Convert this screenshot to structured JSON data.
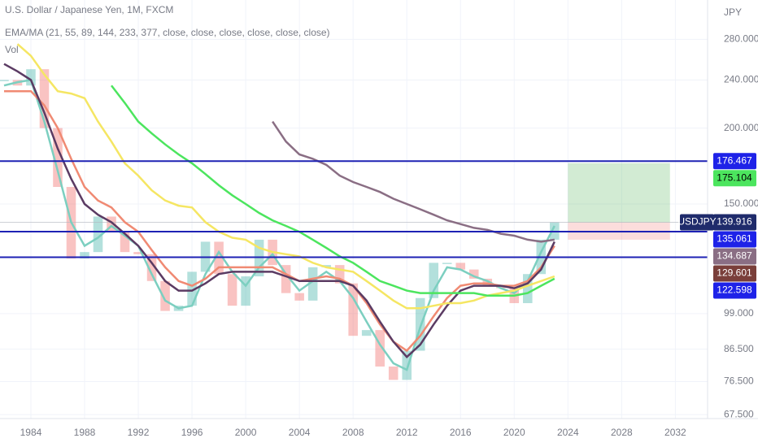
{
  "chart_data": {
    "type": "line",
    "title": "U.S. Dollar / Japanese Yen, 1M, FXCM",
    "subtitle": "EMA/MA (21, 55, 89, 144, 233, 377, close, close, close, close, close, close)",
    "volume_label": "Vol",
    "currency": "JPY",
    "log_scale": true,
    "grid": true,
    "x": [
      1982,
      1983,
      1984,
      1985,
      1986,
      1987,
      1988,
      1989,
      1990,
      1991,
      1992,
      1993,
      1994,
      1995,
      1996,
      1997,
      1998,
      1999,
      2000,
      2001,
      2002,
      2003,
      2004,
      2005,
      2006,
      2007,
      2008,
      2009,
      2010,
      2011,
      2012,
      2013,
      2014,
      2015,
      2016,
      2017,
      2018,
      2019,
      2020,
      2021,
      2022,
      2023
    ],
    "price": {
      "up_color": "#26a69a",
      "down_color": "#ef5350",
      "values": [
        240,
        235,
        250,
        200,
        160,
        122,
        125,
        143,
        135,
        125,
        124,
        112,
        100,
        102,
        116,
        130,
        115,
        102,
        114,
        131,
        119,
        107,
        104,
        118,
        119,
        111,
        91,
        93,
        81,
        77,
        86,
        105,
        120,
        120,
        117,
        113,
        110,
        109,
        103,
        115,
        131,
        140
      ]
    },
    "series": [
      {
        "color": "#7ccfc0",
        "values": [
          235,
          238,
          240,
          205,
          170,
          140,
          128,
          132,
          138,
          133,
          128,
          115,
          104,
          101,
          102,
          115,
          125,
          116,
          110,
          118,
          124,
          115,
          108,
          112,
          116,
          112,
          105,
          96,
          88,
          82,
          80,
          94,
          108,
          118,
          117,
          114,
          112,
          109,
          107,
          112,
          125,
          138
        ]
      },
      {
        "color": "#f08a73",
        "values": [
          230,
          230,
          230,
          218,
          200,
          178,
          160,
          152,
          148,
          140,
          135,
          126,
          118,
          112,
          110,
          113,
          118,
          118,
          118,
          118,
          118,
          115,
          112,
          113,
          114,
          113,
          110,
          103,
          95,
          89,
          86,
          91,
          98,
          105,
          110,
          111,
          111,
          110,
          110,
          112,
          118,
          128
        ]
      },
      {
        "color": "#5b3b63",
        "values": [
          255,
          248,
          240,
          212,
          185,
          165,
          150,
          144,
          140,
          134,
          128,
          120,
          112,
          108,
          108,
          111,
          115,
          116,
          116,
          116,
          116,
          114,
          112,
          112,
          112,
          112,
          110,
          104,
          96,
          89,
          84,
          88,
          95,
          102,
          108,
          110,
          110,
          110,
          109,
          111,
          117,
          130
        ]
      },
      {
        "color": "#f5e663",
        "values": [
          null,
          275,
          263,
          245,
          230,
          228,
          224,
          205,
          190,
          175,
          167,
          158,
          152,
          149,
          148,
          140,
          135,
          132,
          131,
          127,
          125,
          124,
          123,
          120,
          118,
          117,
          116,
          112,
          108,
          104,
          101,
          101,
          102,
          103,
          103,
          104,
          106,
          107,
          108,
          110,
          112,
          114
        ]
      },
      {
        "color": "#4ce55e",
        "values": [
          null,
          null,
          null,
          null,
          null,
          null,
          null,
          null,
          235,
          220,
          205,
          196,
          188,
          181,
          175,
          168,
          161,
          155,
          150,
          145,
          141,
          138,
          135,
          131,
          127,
          123,
          120,
          116,
          112,
          110,
          108,
          107,
          107,
          107,
          107,
          107,
          106,
          106,
          106,
          107,
          110,
          113
        ]
      },
      {
        "color": "#8a6e84",
        "values": [
          null,
          null,
          null,
          null,
          null,
          null,
          null,
          null,
          null,
          null,
          null,
          null,
          null,
          null,
          null,
          null,
          null,
          null,
          null,
          null,
          205,
          190,
          181,
          178,
          174,
          167,
          163,
          160,
          157,
          153,
          150,
          147,
          144,
          141,
          139,
          137,
          136,
          134,
          133,
          131,
          130,
          131
        ]
      }
    ],
    "hlines": [
      {
        "value": 176.467,
        "color": "#1e22b4"
      },
      {
        "value": 135.061,
        "color": "#1e22b4"
      },
      {
        "value": 122.598,
        "color": "#1e22b4"
      }
    ],
    "position": {
      "x": [
        2024,
        2031.6
      ],
      "target": 175.104,
      "entry": 139.916,
      "stop": 131
    },
    "price_labels": [
      {
        "value": 176.467,
        "color": "#1e22e8"
      },
      {
        "value": 175.104,
        "color": "#4ce55e",
        "text_color": "#000000"
      },
      {
        "name": "USDJPY",
        "value": 139.916,
        "color": "#1f2b6b"
      },
      {
        "value": 135.061,
        "color": "#1e22e8"
      },
      {
        "value": 134.687,
        "color": "#8a6e84"
      },
      {
        "value": 129.601,
        "color": "#7a3f3a"
      },
      {
        "value": 122.598,
        "color": "#1e22e8"
      }
    ],
    "xlim": [
      1981.7,
      2034.4
    ],
    "xticks": [
      1984,
      1988,
      1992,
      1996,
      2000,
      2004,
      2008,
      2012,
      2016,
      2020,
      2024,
      2028,
      2032
    ],
    "ylim": [
      66.5,
      325
    ],
    "yticks": [
      {
        "value": 280,
        "label": "280.000"
      },
      {
        "value": 240,
        "label": "240.000"
      },
      {
        "value": 200,
        "label": "200.000"
      },
      {
        "value": 150,
        "label": "150.000"
      },
      {
        "value": 99,
        "label": "99.000"
      },
      {
        "value": 86.5,
        "label": "86.500"
      },
      {
        "value": 76.5,
        "label": "76.500"
      },
      {
        "value": 67.5,
        "label": "67.500"
      }
    ]
  }
}
